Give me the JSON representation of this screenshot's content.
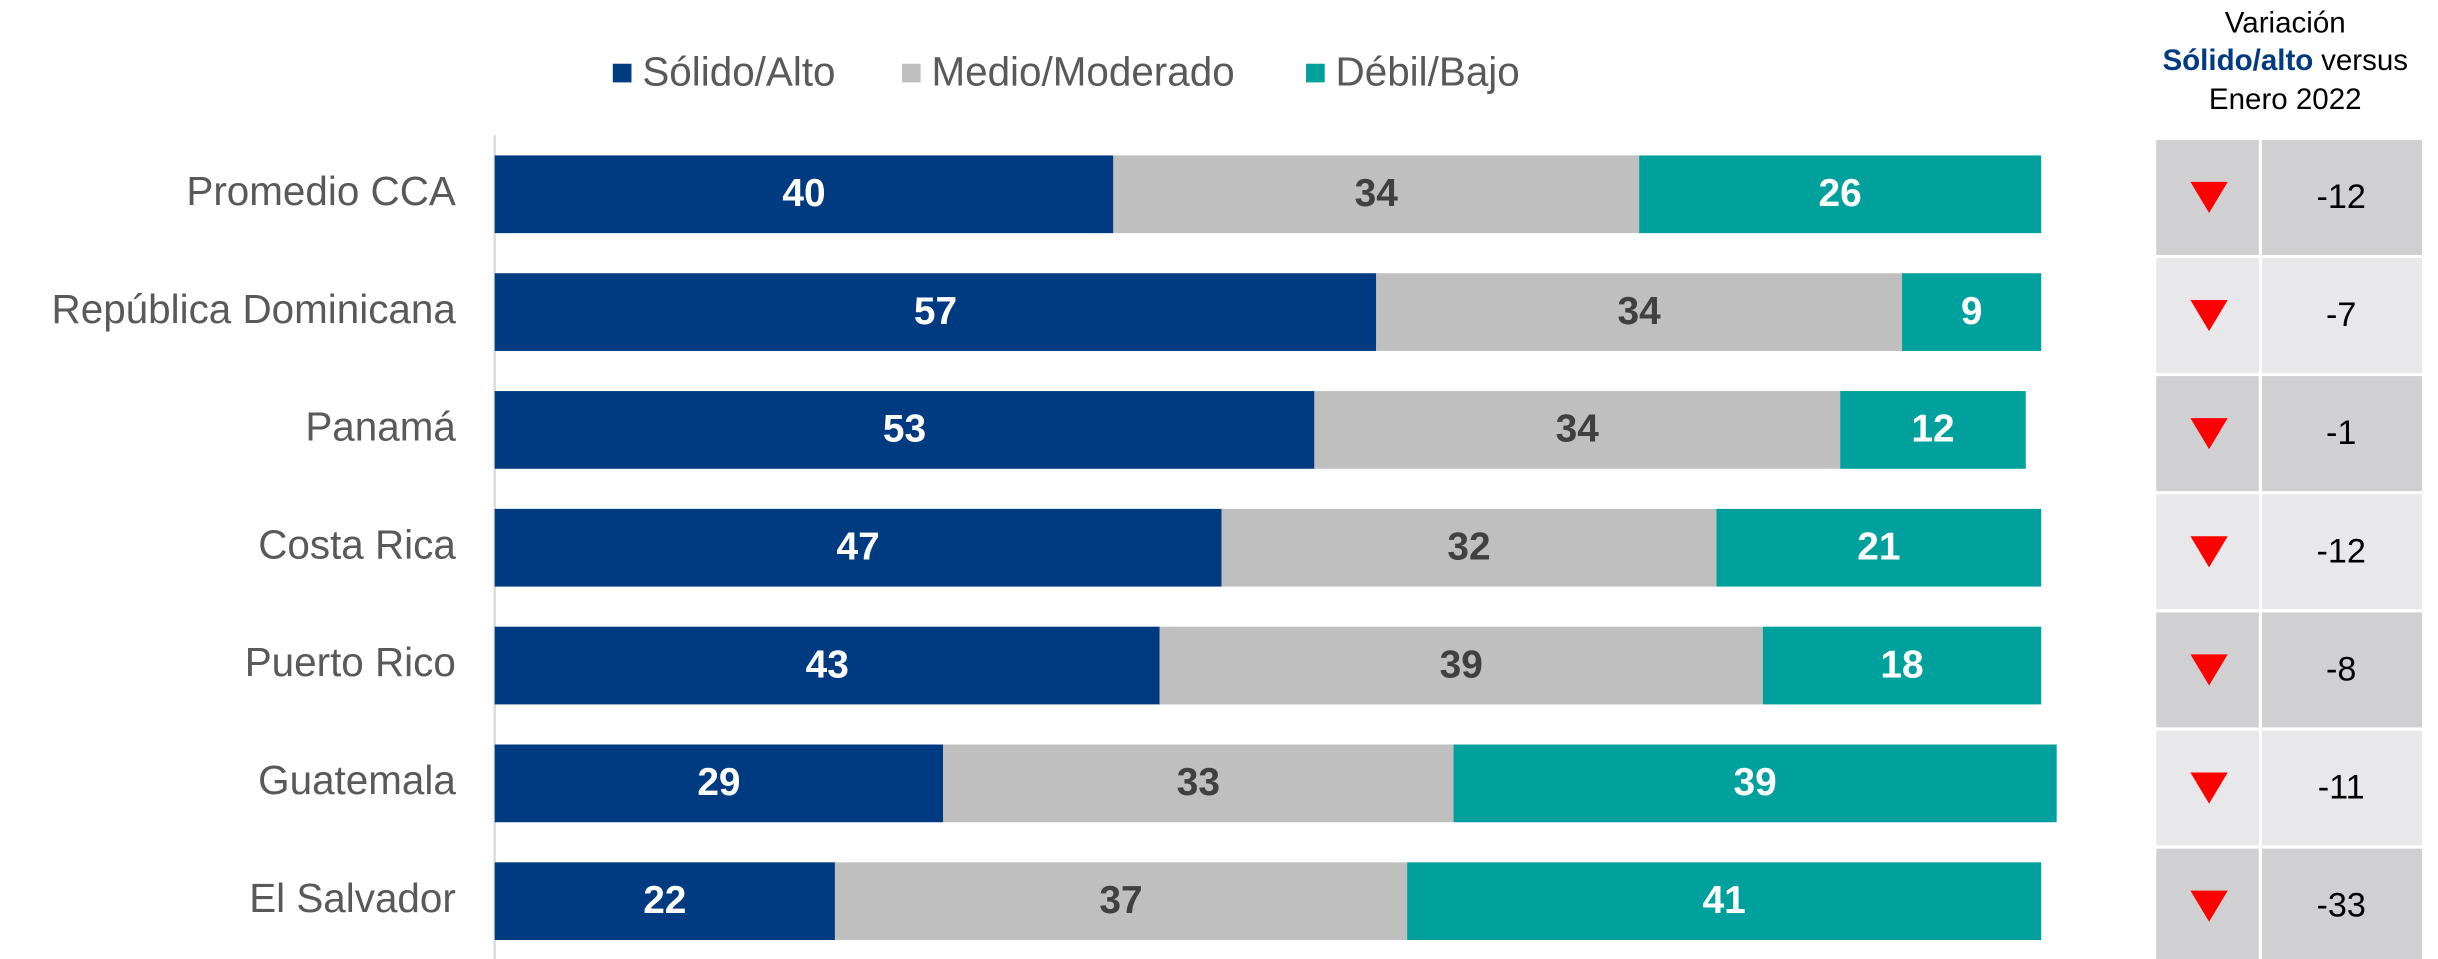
{
  "chart_data": {
    "type": "stacked_barh",
    "categories": [
      "Promedio CCA",
      "República Dominicana",
      "Panamá",
      "Costa Rica",
      "Puerto Rico",
      "Guatemala",
      "El Salvador"
    ],
    "series": [
      {
        "name": "Sólido/Alto",
        "color": "#003a80",
        "label_color": "#ffffff",
        "values": [
          40,
          57,
          53,
          47,
          43,
          29,
          22
        ]
      },
      {
        "name": "Medio/Moderado",
        "color": "#bfbfbf",
        "label_color": "#404040",
        "values": [
          34,
          34,
          34,
          32,
          39,
          33,
          37
        ]
      },
      {
        "name": "Débil/Bajo",
        "color": "#00a09d",
        "label_color": "#ffffff",
        "values": [
          26,
          9,
          12,
          21,
          18,
          39,
          41
        ]
      }
    ],
    "xlim": [
      0,
      100
    ],
    "legend": "top",
    "variation": {
      "title": [
        "Variación",
        "Sólido/alto",
        "versus",
        "Enero 2022"
      ],
      "values": [
        -12,
        -7,
        -1,
        -12,
        -8,
        -11,
        -33
      ]
    }
  }
}
